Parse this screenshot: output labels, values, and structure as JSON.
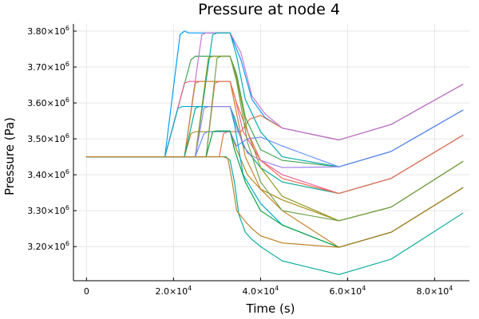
{
  "chart_data": {
    "type": "line",
    "title": "Pressure at node 4",
    "xlabel": "Time (s)",
    "ylabel": "Pressure (Pa)",
    "xlim": [
      -3000,
      88000
    ],
    "ylim": [
      3105000,
      3820000
    ],
    "grid": true,
    "legend": "none",
    "x_ticks": [
      {
        "value": 0,
        "mantissa": "0",
        "exp": ""
      },
      {
        "value": 20000,
        "mantissa": "2.0×10",
        "exp": "4"
      },
      {
        "value": 40000,
        "mantissa": "4.0×10",
        "exp": "4"
      },
      {
        "value": 60000,
        "mantissa": "6.0×10",
        "exp": "4"
      },
      {
        "value": 80000,
        "mantissa": "8.0×10",
        "exp": "4"
      }
    ],
    "y_ticks": [
      {
        "value": 3200000,
        "mantissa": "3.20×10",
        "exp": "6"
      },
      {
        "value": 3300000,
        "mantissa": "3.30×10",
        "exp": "6"
      },
      {
        "value": 3400000,
        "mantissa": "3.40×10",
        "exp": "6"
      },
      {
        "value": 3500000,
        "mantissa": "3.50×10",
        "exp": "6"
      },
      {
        "value": 3600000,
        "mantissa": "3.60×10",
        "exp": "6"
      },
      {
        "value": 3700000,
        "mantissa": "3.70×10",
        "exp": "6"
      },
      {
        "value": 3800000,
        "mantissa": "3.80×10",
        "exp": "6"
      }
    ],
    "series": [
      {
        "color": "#009AFA",
        "x": [
          0,
          18000,
          21500,
          22500,
          23500,
          33000,
          35500,
          38000,
          41000,
          45000,
          58000,
          70000,
          86500
        ],
        "y": [
          3450000,
          3450000,
          3790000,
          3800000,
          3795000,
          3795000,
          3720000,
          3610000,
          3560000,
          3530000,
          3497000,
          3540000,
          3652000
        ]
      },
      {
        "color": "#E36F47",
        "x": [
          0,
          30500,
          31500,
          32500,
          33000,
          35500,
          37500,
          40000,
          45000,
          58000,
          70000,
          86500
        ],
        "y": [
          3450000,
          3450000,
          3515000,
          3520000,
          3520000,
          3520000,
          3555000,
          3565000,
          3530000,
          3497000,
          3540000,
          3652000
        ]
      },
      {
        "color": "#3EA44E",
        "x": [
          0,
          18000,
          24000,
          25000,
          33000,
          34500,
          36500,
          40000,
          45000,
          58000,
          70000,
          86500
        ],
        "y": [
          3450000,
          3450000,
          3720000,
          3730000,
          3730000,
          3680000,
          3560000,
          3470000,
          3440000,
          3422000,
          3465000,
          3580000
        ]
      },
      {
        "color": "#C371D2",
        "x": [
          0,
          22500,
          26500,
          27500,
          33000,
          35500,
          38000,
          41000,
          45000,
          58000,
          70000,
          86500
        ],
        "y": [
          3450000,
          3450000,
          3790000,
          3795000,
          3795000,
          3740000,
          3620000,
          3570000,
          3530000,
          3497000,
          3540000,
          3652000
        ]
      },
      {
        "color": "#AC8D18",
        "x": [
          0,
          22500,
          24000,
          25000,
          33000,
          34500,
          37000,
          40000,
          45000,
          58000,
          70000,
          86500
        ],
        "y": [
          3450000,
          3450000,
          3515000,
          3520000,
          3520000,
          3470000,
          3400000,
          3360000,
          3330000,
          3272000,
          3310000,
          3437000
        ]
      },
      {
        "color": "#00A9AD",
        "x": [
          0,
          25000,
          29000,
          30000,
          33000,
          34500,
          36500,
          40000,
          45000,
          58000,
          70000,
          86500
        ],
        "y": [
          3450000,
          3450000,
          3790000,
          3795000,
          3795000,
          3730000,
          3610000,
          3520000,
          3450000,
          3422000,
          3465000,
          3580000
        ]
      },
      {
        "color": "#ED5E93",
        "x": [
          0,
          18000,
          22500,
          23500,
          33000,
          34000,
          36000,
          40000,
          45000,
          58000,
          70000,
          86500
        ],
        "y": [
          3450000,
          3450000,
          3655000,
          3660000,
          3660000,
          3620000,
          3520000,
          3440000,
          3400000,
          3348000,
          3390000,
          3510000
        ]
      },
      {
        "color": "#C68125",
        "x": [
          0,
          22500,
          25000,
          26000,
          33000,
          34000,
          36500,
          40000,
          45000,
          58000,
          70000,
          86500
        ],
        "y": [
          3450000,
          3450000,
          3655000,
          3660000,
          3660000,
          3600000,
          3450000,
          3360000,
          3300000,
          3198000,
          3240000,
          3364000
        ]
      },
      {
        "color": "#00A98D",
        "x": [
          0,
          22500,
          25000,
          26000,
          33000,
          34000,
          36000,
          40000,
          45000,
          58000,
          70000,
          86500
        ],
        "y": [
          3450000,
          3450000,
          3585000,
          3590000,
          3590000,
          3560000,
          3480000,
          3420000,
          3380000,
          3348000,
          3390000,
          3510000
        ]
      },
      {
        "color": "#8E971D",
        "x": [
          0,
          25000,
          28000,
          29000,
          33000,
          34500,
          37000,
          40000,
          45000,
          58000,
          70000,
          86500
        ],
        "y": [
          3450000,
          3450000,
          3725000,
          3730000,
          3730000,
          3670000,
          3520000,
          3420000,
          3340000,
          3272000,
          3310000,
          3437000
        ]
      },
      {
        "color": "#00A9CD",
        "x": [
          0,
          18000,
          21000,
          22000,
          33000,
          34000,
          36000,
          40000,
          45000,
          58000,
          70000,
          86500
        ],
        "y": [
          3450000,
          3450000,
          3585000,
          3590000,
          3590000,
          3540000,
          3400000,
          3320000,
          3260000,
          3198000,
          3240000,
          3364000
        ]
      },
      {
        "color": "#9B7FE9",
        "x": [
          0,
          25000,
          27000,
          28000,
          33000,
          34500,
          37000,
          40000,
          45000,
          58000,
          70000,
          86500
        ],
        "y": [
          3450000,
          3450000,
          3585000,
          3590000,
          3590000,
          3530000,
          3460000,
          3440000,
          3420000,
          3422000,
          3465000,
          3580000
        ]
      },
      {
        "color": "#618DF6",
        "x": [
          0,
          25000,
          27000,
          28000,
          33000,
          34500,
          37000,
          40000,
          45000,
          58000,
          70000,
          86500
        ],
        "y": [
          3450000,
          3450000,
          3515000,
          3520000,
          3520000,
          3480000,
          3500000,
          3505000,
          3480000,
          3422000,
          3465000,
          3580000
        ]
      },
      {
        "color": "#F16C4F",
        "x": [
          0,
          27500,
          29500,
          30500,
          33000,
          34500,
          37000,
          40000,
          45000,
          58000,
          70000,
          86500
        ],
        "y": [
          3450000,
          3450000,
          3655000,
          3660000,
          3660000,
          3600000,
          3520000,
          3440000,
          3390000,
          3348000,
          3390000,
          3510000
        ]
      },
      {
        "color": "#6CA04B",
        "x": [
          0,
          27500,
          30000,
          31000,
          33000,
          34500,
          37000,
          40000,
          45000,
          58000,
          70000,
          86500
        ],
        "y": [
          3450000,
          3450000,
          3725000,
          3730000,
          3730000,
          3660000,
          3490000,
          3380000,
          3300000,
          3272000,
          3310000,
          3437000
        ]
      },
      {
        "color": "#00A23A",
        "x": [
          0,
          27500,
          29000,
          30000,
          33000,
          34000,
          36500,
          40000,
          45000,
          58000,
          70000,
          86500
        ],
        "y": [
          3450000,
          3450000,
          3520000,
          3522000,
          3522000,
          3470000,
          3380000,
          3300000,
          3260000,
          3198000,
          3240000,
          3364000
        ]
      },
      {
        "color": "#00A89A",
        "x": [
          0,
          32000,
          33000,
          34000,
          35000,
          36500,
          38000,
          40000,
          45000,
          58000,
          70000,
          86500
        ],
        "y": [
          3450000,
          3450000,
          3440000,
          3380000,
          3290000,
          3240000,
          3220000,
          3200000,
          3160000,
          3122000,
          3165000,
          3293000
        ]
      },
      {
        "color": "#BB7D1D",
        "x": [
          0,
          31500,
          32500,
          33500,
          34500,
          36500,
          38000,
          40000,
          45000,
          58000,
          70000,
          86500
        ],
        "y": [
          3450000,
          3450000,
          3445000,
          3380000,
          3300000,
          3270000,
          3250000,
          3230000,
          3210000,
          3198000,
          3240000,
          3364000
        ]
      }
    ]
  }
}
